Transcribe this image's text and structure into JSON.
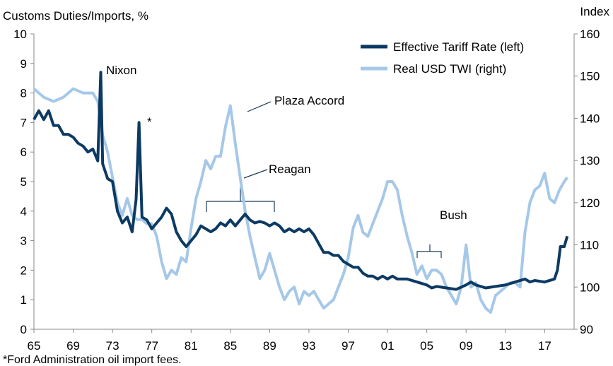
{
  "chart_data": {
    "type": "line",
    "y_label": "Customs Duties/Imports, %",
    "y2_label": "Index",
    "footnote": "*Ford Administration oil import fees.",
    "annotations": [
      "Nixon",
      "*",
      "Plaza Accord",
      "Reagan",
      "Bush"
    ],
    "xlim": [
      1965,
      2020
    ],
    "xticks": [
      {
        "value": 1965,
        "label": "65"
      },
      {
        "value": 1969,
        "label": "69"
      },
      {
        "value": 1973,
        "label": "73"
      },
      {
        "value": 1977,
        "label": "77"
      },
      {
        "value": 1981,
        "label": "81"
      },
      {
        "value": 1985,
        "label": "85"
      },
      {
        "value": 1989,
        "label": "89"
      },
      {
        "value": 1993,
        "label": "93"
      },
      {
        "value": 1997,
        "label": "97"
      },
      {
        "value": 2001,
        "label": "01"
      },
      {
        "value": 2005,
        "label": "05"
      },
      {
        "value": 2009,
        "label": "09"
      },
      {
        "value": 2013,
        "label": "13"
      },
      {
        "value": 2017,
        "label": "17"
      }
    ],
    "ylim": [
      0,
      10
    ],
    "yticks": [
      0,
      1,
      2,
      3,
      4,
      5,
      6,
      7,
      8,
      9,
      10
    ],
    "y2lim": [
      90,
      160
    ],
    "y2ticks": [
      90,
      100,
      110,
      120,
      130,
      140,
      150,
      160
    ],
    "grid": false,
    "legend": "top-right",
    "series": [
      {
        "name": "Effective Tariff Rate (left)",
        "color": "#0c3a63",
        "axis": "y",
        "x": [
          1965,
          1965.5,
          1966,
          1966.5,
          1967,
          1967.5,
          1968,
          1968.5,
          1969,
          1969.5,
          1970,
          1970.5,
          1971,
          1971.5,
          1971.8,
          1972,
          1972.5,
          1973,
          1973.5,
          1974,
          1974.5,
          1975,
          1975.4,
          1975.7,
          1976,
          1976.5,
          1977,
          1977.5,
          1978,
          1978.5,
          1979,
          1979.5,
          1980,
          1980.5,
          1981,
          1981.5,
          1982,
          1982.5,
          1983,
          1983.5,
          1984,
          1984.5,
          1985,
          1985.5,
          1986,
          1986.5,
          1987,
          1987.5,
          1988,
          1988.5,
          1989,
          1989.5,
          1990,
          1990.5,
          1991,
          1991.5,
          1992,
          1992.5,
          1993,
          1993.5,
          1994,
          1994.5,
          1995,
          1995.5,
          1996,
          1996.5,
          1997,
          1997.5,
          1998,
          1998.5,
          1999,
          1999.5,
          2000,
          2000.5,
          2001,
          2001.5,
          2002,
          2003,
          2004,
          2005,
          2005.5,
          2006,
          2007,
          2008,
          2009,
          2009.5,
          2010,
          2011,
          2012,
          2013,
          2014,
          2015,
          2015.5,
          2016,
          2017,
          2018,
          2018.3,
          2018.6,
          2019,
          2019.3
        ],
        "values": [
          7.1,
          7.4,
          7.1,
          7.4,
          6.9,
          6.9,
          6.6,
          6.6,
          6.5,
          6.3,
          6.2,
          6.0,
          6.1,
          5.7,
          8.7,
          5.6,
          5.1,
          5.0,
          4.0,
          3.6,
          3.8,
          3.3,
          4.4,
          7.0,
          3.8,
          3.7,
          3.4,
          3.6,
          3.8,
          4.1,
          3.9,
          3.3,
          3.0,
          2.8,
          3.0,
          3.2,
          3.5,
          3.4,
          3.3,
          3.4,
          3.6,
          3.5,
          3.7,
          3.5,
          3.7,
          3.9,
          3.7,
          3.6,
          3.65,
          3.6,
          3.5,
          3.6,
          3.5,
          3.3,
          3.4,
          3.3,
          3.4,
          3.3,
          3.4,
          3.2,
          2.9,
          2.6,
          2.6,
          2.5,
          2.5,
          2.3,
          2.2,
          2.1,
          2.1,
          1.9,
          1.8,
          1.8,
          1.7,
          1.8,
          1.7,
          1.8,
          1.7,
          1.7,
          1.6,
          1.5,
          1.4,
          1.45,
          1.4,
          1.35,
          1.5,
          1.6,
          1.5,
          1.4,
          1.45,
          1.5,
          1.6,
          1.7,
          1.6,
          1.65,
          1.6,
          1.7,
          2.0,
          2.8,
          2.8,
          3.15
        ]
      },
      {
        "name": "Real USD TWI (right)",
        "color": "#a6c8e8",
        "axis": "y2",
        "x": [
          1965,
          1965.5,
          1966,
          1967,
          1968,
          1969,
          1970,
          1971,
          1971.5,
          1972,
          1972.5,
          1973,
          1973.5,
          1974,
          1974.5,
          1975,
          1975.5,
          1976,
          1976.5,
          1977,
          1977.5,
          1978,
          1978.5,
          1979,
          1979.5,
          1980,
          1980.5,
          1981,
          1981.5,
          1982,
          1982.5,
          1983,
          1983.5,
          1984,
          1984.5,
          1985,
          1985.5,
          1986,
          1986.5,
          1987,
          1987.5,
          1988,
          1988.5,
          1989,
          1989.5,
          1990,
          1990.5,
          1991,
          1991.5,
          1992,
          1992.5,
          1993,
          1993.5,
          1994,
          1994.5,
          1995,
          1995.5,
          1996,
          1996.5,
          1997,
          1997.5,
          1998,
          1998.5,
          1999,
          1999.5,
          2000,
          2000.5,
          2001,
          2001.5,
          2002,
          2002.5,
          2003,
          2003.5,
          2004,
          2004.5,
          2005,
          2005.5,
          2006,
          2006.5,
          2007,
          2007.5,
          2008,
          2008.5,
          2009,
          2009.5,
          2010,
          2010.5,
          2011,
          2011.5,
          2012,
          2012.5,
          2013,
          2013.5,
          2014,
          2014.5,
          2015,
          2015.5,
          2016,
          2016.5,
          2017,
          2017.5,
          2018,
          2018.5,
          2019,
          2019.3
        ],
        "values": [
          147,
          146,
          145,
          144,
          145,
          147,
          146,
          146,
          144,
          136,
          132,
          126,
          120,
          117,
          121,
          117,
          116,
          116,
          115,
          115,
          112,
          106,
          102,
          104,
          103,
          107,
          106,
          114,
          121,
          125,
          130,
          128,
          131,
          131,
          138,
          143,
          134,
          126,
          118,
          112,
          107,
          102,
          104,
          108,
          104,
          100,
          97,
          99,
          100,
          96,
          99,
          98,
          99,
          97,
          95,
          96,
          97,
          100,
          103,
          107,
          114,
          117,
          113,
          112,
          115,
          118,
          121,
          125,
          125,
          123,
          117,
          112,
          108,
          103,
          105,
          102,
          104,
          104,
          103,
          100,
          98,
          96,
          100,
          110,
          100,
          101,
          97,
          95,
          94,
          98,
          99,
          100,
          101,
          101,
          100,
          113,
          120,
          123,
          124,
          127,
          121,
          120,
          123,
          125,
          126
        ]
      }
    ]
  }
}
